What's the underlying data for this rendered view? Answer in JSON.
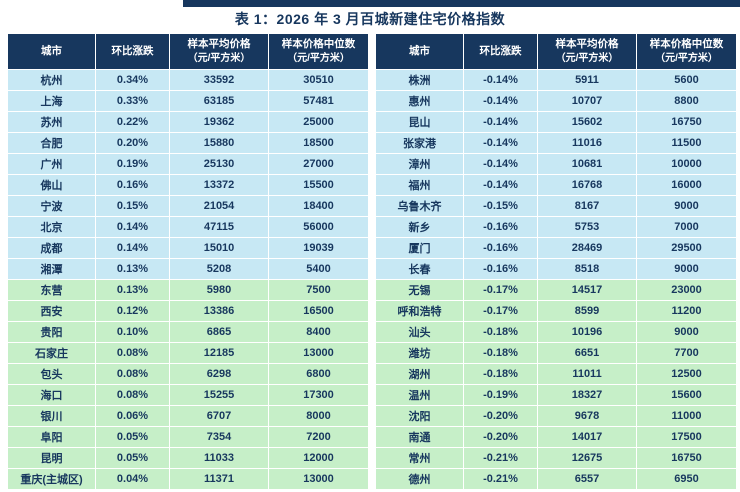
{
  "title": "表 1：2026 年 3 月百城新建住宅价格指数",
  "columns": [
    {
      "label": "城市",
      "sub": ""
    },
    {
      "label": "环比涨跌",
      "sub": ""
    },
    {
      "label": "样本平均价格",
      "sub": "（元/平方米）"
    },
    {
      "label": "样本价格中位数",
      "sub": "（元/平方米）"
    }
  ],
  "tables": [
    {
      "rows": [
        {
          "city": "杭州",
          "change": "0.34%",
          "avg": "33592",
          "median": "30510",
          "group": "blue"
        },
        {
          "city": "上海",
          "change": "0.33%",
          "avg": "63185",
          "median": "57481",
          "group": "blue"
        },
        {
          "city": "苏州",
          "change": "0.22%",
          "avg": "19362",
          "median": "25000",
          "group": "blue"
        },
        {
          "city": "合肥",
          "change": "0.20%",
          "avg": "15880",
          "median": "18500",
          "group": "blue"
        },
        {
          "city": "广州",
          "change": "0.19%",
          "avg": "25130",
          "median": "27000",
          "group": "blue"
        },
        {
          "city": "佛山",
          "change": "0.16%",
          "avg": "13372",
          "median": "15500",
          "group": "blue"
        },
        {
          "city": "宁波",
          "change": "0.15%",
          "avg": "21054",
          "median": "18400",
          "group": "blue"
        },
        {
          "city": "北京",
          "change": "0.14%",
          "avg": "47115",
          "median": "56000",
          "group": "blue"
        },
        {
          "city": "成都",
          "change": "0.14%",
          "avg": "15010",
          "median": "19039",
          "group": "blue"
        },
        {
          "city": "湘潭",
          "change": "0.13%",
          "avg": "5208",
          "median": "5400",
          "group": "blue"
        },
        {
          "city": "东营",
          "change": "0.13%",
          "avg": "5980",
          "median": "7500",
          "group": "green"
        },
        {
          "city": "西安",
          "change": "0.12%",
          "avg": "13386",
          "median": "16500",
          "group": "green"
        },
        {
          "city": "贵阳",
          "change": "0.10%",
          "avg": "6865",
          "median": "8400",
          "group": "green"
        },
        {
          "city": "石家庄",
          "change": "0.08%",
          "avg": "12185",
          "median": "13000",
          "group": "green"
        },
        {
          "city": "包头",
          "change": "0.08%",
          "avg": "6298",
          "median": "6800",
          "group": "green"
        },
        {
          "city": "海口",
          "change": "0.08%",
          "avg": "15255",
          "median": "17300",
          "group": "green"
        },
        {
          "city": "银川",
          "change": "0.06%",
          "avg": "6707",
          "median": "8000",
          "group": "green"
        },
        {
          "city": "阜阳",
          "change": "0.05%",
          "avg": "7354",
          "median": "7200",
          "group": "green"
        },
        {
          "city": "昆明",
          "change": "0.05%",
          "avg": "11033",
          "median": "12000",
          "group": "green"
        },
        {
          "city": "重庆(主城区)",
          "change": "0.04%",
          "avg": "11371",
          "median": "13000",
          "group": "green"
        }
      ]
    },
    {
      "rows": [
        {
          "city": "株洲",
          "change": "-0.14%",
          "avg": "5911",
          "median": "5600",
          "group": "blue"
        },
        {
          "city": "惠州",
          "change": "-0.14%",
          "avg": "10707",
          "median": "8800",
          "group": "blue"
        },
        {
          "city": "昆山",
          "change": "-0.14%",
          "avg": "15602",
          "median": "16750",
          "group": "blue"
        },
        {
          "city": "张家港",
          "change": "-0.14%",
          "avg": "11016",
          "median": "11500",
          "group": "blue"
        },
        {
          "city": "漳州",
          "change": "-0.14%",
          "avg": "10681",
          "median": "10000",
          "group": "blue"
        },
        {
          "city": "福州",
          "change": "-0.14%",
          "avg": "16768",
          "median": "16000",
          "group": "blue"
        },
        {
          "city": "乌鲁木齐",
          "change": "-0.15%",
          "avg": "8167",
          "median": "9000",
          "group": "blue"
        },
        {
          "city": "新乡",
          "change": "-0.16%",
          "avg": "5753",
          "median": "7000",
          "group": "blue"
        },
        {
          "city": "厦门",
          "change": "-0.16%",
          "avg": "28469",
          "median": "29500",
          "group": "blue"
        },
        {
          "city": "长春",
          "change": "-0.16%",
          "avg": "8518",
          "median": "9000",
          "group": "blue"
        },
        {
          "city": "无锡",
          "change": "-0.17%",
          "avg": "14517",
          "median": "23000",
          "group": "green"
        },
        {
          "city": "呼和浩特",
          "change": "-0.17%",
          "avg": "8599",
          "median": "11200",
          "group": "green"
        },
        {
          "city": "汕头",
          "change": "-0.18%",
          "avg": "10196",
          "median": "9000",
          "group": "green"
        },
        {
          "city": "潍坊",
          "change": "-0.18%",
          "avg": "6651",
          "median": "7700",
          "group": "green"
        },
        {
          "city": "湖州",
          "change": "-0.18%",
          "avg": "11011",
          "median": "12500",
          "group": "green"
        },
        {
          "city": "温州",
          "change": "-0.19%",
          "avg": "18327",
          "median": "15600",
          "group": "green"
        },
        {
          "city": "沈阳",
          "change": "-0.20%",
          "avg": "9678",
          "median": "11000",
          "group": "green"
        },
        {
          "city": "南通",
          "change": "-0.20%",
          "avg": "14017",
          "median": "17500",
          "group": "green"
        },
        {
          "city": "常州",
          "change": "-0.21%",
          "avg": "12675",
          "median": "16750",
          "group": "green"
        },
        {
          "city": "德州",
          "change": "-0.21%",
          "avg": "6557",
          "median": "6950",
          "group": "green"
        }
      ]
    }
  ]
}
